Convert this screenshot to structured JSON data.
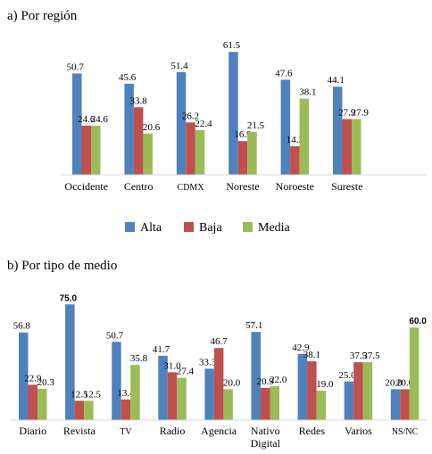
{
  "colors": {
    "Alta": "#4F81BD",
    "Baja": "#C0504D",
    "Media": "#9BBB59"
  },
  "chart_data": [
    {
      "type": "bar",
      "title": "a) Por región",
      "categories": [
        "Occidente",
        "Centro",
        "CDMX",
        "Noreste",
        "Noroeste",
        "Sureste"
      ],
      "series": [
        {
          "name": "Alta",
          "values": [
            50.7,
            45.6,
            51.4,
            61.5,
            47.6,
            44.1
          ]
        },
        {
          "name": "Baja",
          "values": [
            24.6,
            33.8,
            26.2,
            16.9,
            14.3,
            27.9
          ]
        },
        {
          "name": "Media",
          "values": [
            24.6,
            20.6,
            22.4,
            21.5,
            38.1,
            27.9
          ]
        }
      ],
      "value_labels": [
        [
          "50.7",
          "45.6",
          "51.4",
          "61.5",
          "47.6",
          "44.1"
        ],
        [
          "24.6",
          "33.8",
          "26.2",
          "16.9",
          "14.3",
          "27.9"
        ],
        [
          "24.6",
          "20.6",
          "22.4",
          "21.5",
          "38.1",
          "27.9"
        ]
      ],
      "legend_position": "bottom",
      "grid": false
    },
    {
      "type": "bar",
      "title": "b) Por tipo de medio",
      "categories": [
        "Diario",
        "Revista",
        "TV",
        "Radio",
        "Agencia",
        "Nativo Digital",
        "Redes",
        "Varios",
        "NS/NC"
      ],
      "series": [
        {
          "name": "Alta",
          "values": [
            56.8,
            75.0,
            50.7,
            41.7,
            33.3,
            57.1,
            42.9,
            25.0,
            20.0
          ]
        },
        {
          "name": "Baja",
          "values": [
            22.9,
            12.5,
            13.4,
            31.0,
            46.7,
            20.9,
            38.1,
            37.5,
            20.0
          ]
        },
        {
          "name": "Media",
          "values": [
            20.3,
            12.5,
            35.8,
            27.4,
            20.0,
            22.0,
            19.0,
            37.5,
            60.0
          ]
        }
      ],
      "value_labels": [
        [
          "56.8",
          "75.0",
          "50.7",
          "41.7",
          "33.3",
          "57.1",
          "42.9",
          "25.0",
          "20.0"
        ],
        [
          "22.9",
          "12.5",
          "13.4",
          "31.0",
          "46.7",
          "20.9",
          "38.1",
          "37.5",
          "20.0"
        ],
        [
          "20.3",
          "12.5",
          "35.8",
          "27.4",
          "20.0",
          "22.0",
          "19.0",
          "37.5",
          "60.0"
        ]
      ],
      "grid": false
    }
  ]
}
